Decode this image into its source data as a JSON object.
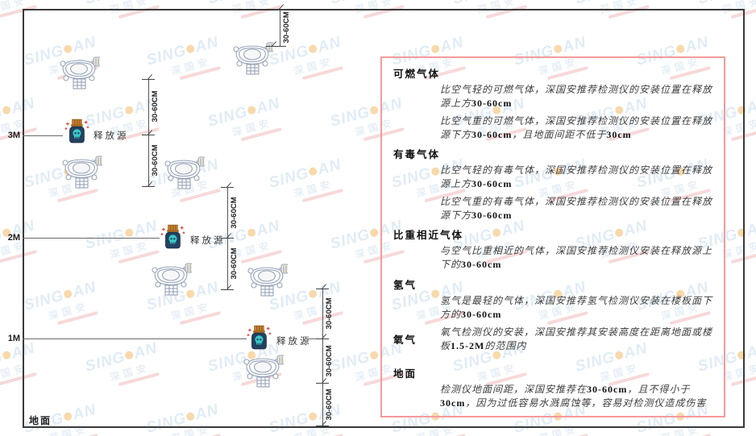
{
  "watermark": {
    "brand_a": "SING",
    "brand_b": "AN",
    "sub": "深国安",
    "blue": "#b7d3ea",
    "orange": "#f0a63c"
  },
  "diagram": {
    "levels": [
      "3M",
      "2M",
      "1M"
    ],
    "source_label": "释放源",
    "ground_label": "地面",
    "dim_label": "30-60CM",
    "colors": {
      "source_body": "#24415f",
      "source_cap": "#c9812e",
      "source_skull": "#39c9c9",
      "detector_stroke": "#97a3b8"
    }
  },
  "panel": {
    "border_color": "#f49b9b",
    "sections": [
      {
        "heading": "可燃气体",
        "paragraphs": [
          "比空气轻的可燃气体，深国安推荐检测仪的安装位置在释放源上方30-60cm",
          "比空气重的可燃气体，深国安推荐检测仪的安装位置在释放源下方30-60cm，且地面间距不低于30cm"
        ]
      },
      {
        "heading": "有毒气体",
        "paragraphs": [
          "比空气轻的有毒气体，深国安推荐检测仪的安装位置在释放源上方30-60cm",
          "比空气重的有毒气体，深国安推荐检测仪的安装位置在释放源下方30-60cm"
        ]
      },
      {
        "heading": "比重相近气体",
        "paragraphs": [
          "与空气比重相近的气体，深国安推荐检测仪安装在释放源上下的30-60cm"
        ]
      },
      {
        "heading": "氢气",
        "paragraphs": [
          "氢气是最轻的气体，深国安推荐氢气检测仪安装在楼板面下方的30-60cm"
        ]
      },
      {
        "heading": "氧气",
        "paragraphs": [
          "氧气检测仪的安装，深国安推荐其安装高度在距离地面或楼板1.5-2M的范围内"
        ]
      },
      {
        "heading": "地面",
        "paragraphs": [
          "检测仪地面间距，深国安推荐在30-60cm，且不得小于30cm，因为过低容易水溅腐蚀等，容易对检测仪造成伤害"
        ]
      }
    ]
  }
}
